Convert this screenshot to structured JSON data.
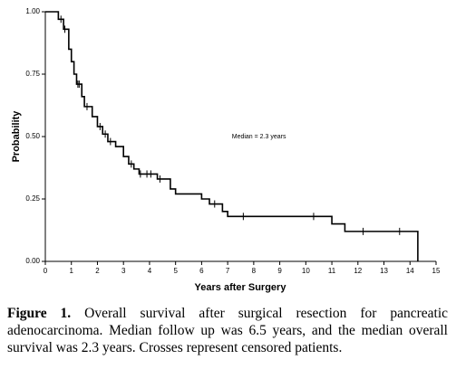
{
  "chart_data": {
    "type": "step",
    "x_label": "Years after Surgery",
    "y_label": "Probability",
    "annotation": "Median = 2.3 years",
    "xlim": [
      0,
      15
    ],
    "xticks": [
      0,
      1,
      2,
      3,
      4,
      5,
      6,
      7,
      8,
      9,
      10,
      11,
      12,
      13,
      14,
      15
    ],
    "ylim": [
      0,
      1
    ],
    "yticks": [
      {
        "value": 0,
        "label": "0.00"
      },
      0.25,
      {
        "value": 0.5,
        "label": "0.50"
      },
      0.75,
      {
        "value": 1,
        "label": "1.00"
      }
    ],
    "color": "#000000",
    "x": [
      0,
      0.5,
      0.7,
      0.9,
      1.0,
      1.1,
      1.2,
      1.4,
      1.5,
      1.8,
      2.0,
      2.2,
      2.4,
      2.7,
      3.0,
      3.2,
      3.4,
      3.6,
      4.3,
      4.8,
      5.0,
      6.0,
      6.3,
      6.8,
      7.0,
      11.0,
      11.5,
      14.3
    ],
    "y": [
      1,
      0.97,
      0.93,
      0.85,
      0.8,
      0.75,
      0.71,
      0.66,
      0.62,
      0.58,
      0.54,
      0.51,
      0.48,
      0.46,
      0.42,
      0.39,
      0.37,
      0.35,
      0.33,
      0.29,
      0.27,
      0.25,
      0.23,
      0.2,
      0.18,
      0.15,
      0.12,
      0
    ],
    "censored": {
      "x": [
        0.6,
        0.75,
        1.25,
        1.3,
        1.6,
        2.1,
        2.3,
        2.5,
        3.3,
        3.65,
        3.9,
        4.05,
        4.4,
        6.5,
        7.6,
        10.3,
        12.2,
        13.6
      ],
      "y": [
        0.97,
        0.93,
        0.71,
        0.71,
        0.62,
        0.54,
        0.51,
        0.48,
        0.39,
        0.35,
        0.35,
        0.35,
        0.33,
        0.23,
        0.18,
        0.18,
        0.12,
        0.12
      ]
    }
  },
  "caption": {
    "label": "Figure 1.",
    "text": "Overall survival after surgical resection for pancreatic adenocarcinoma. Median follow up was 6.5 years, and the median overall survival was 2.3 years. Crosses represent censored patients."
  }
}
